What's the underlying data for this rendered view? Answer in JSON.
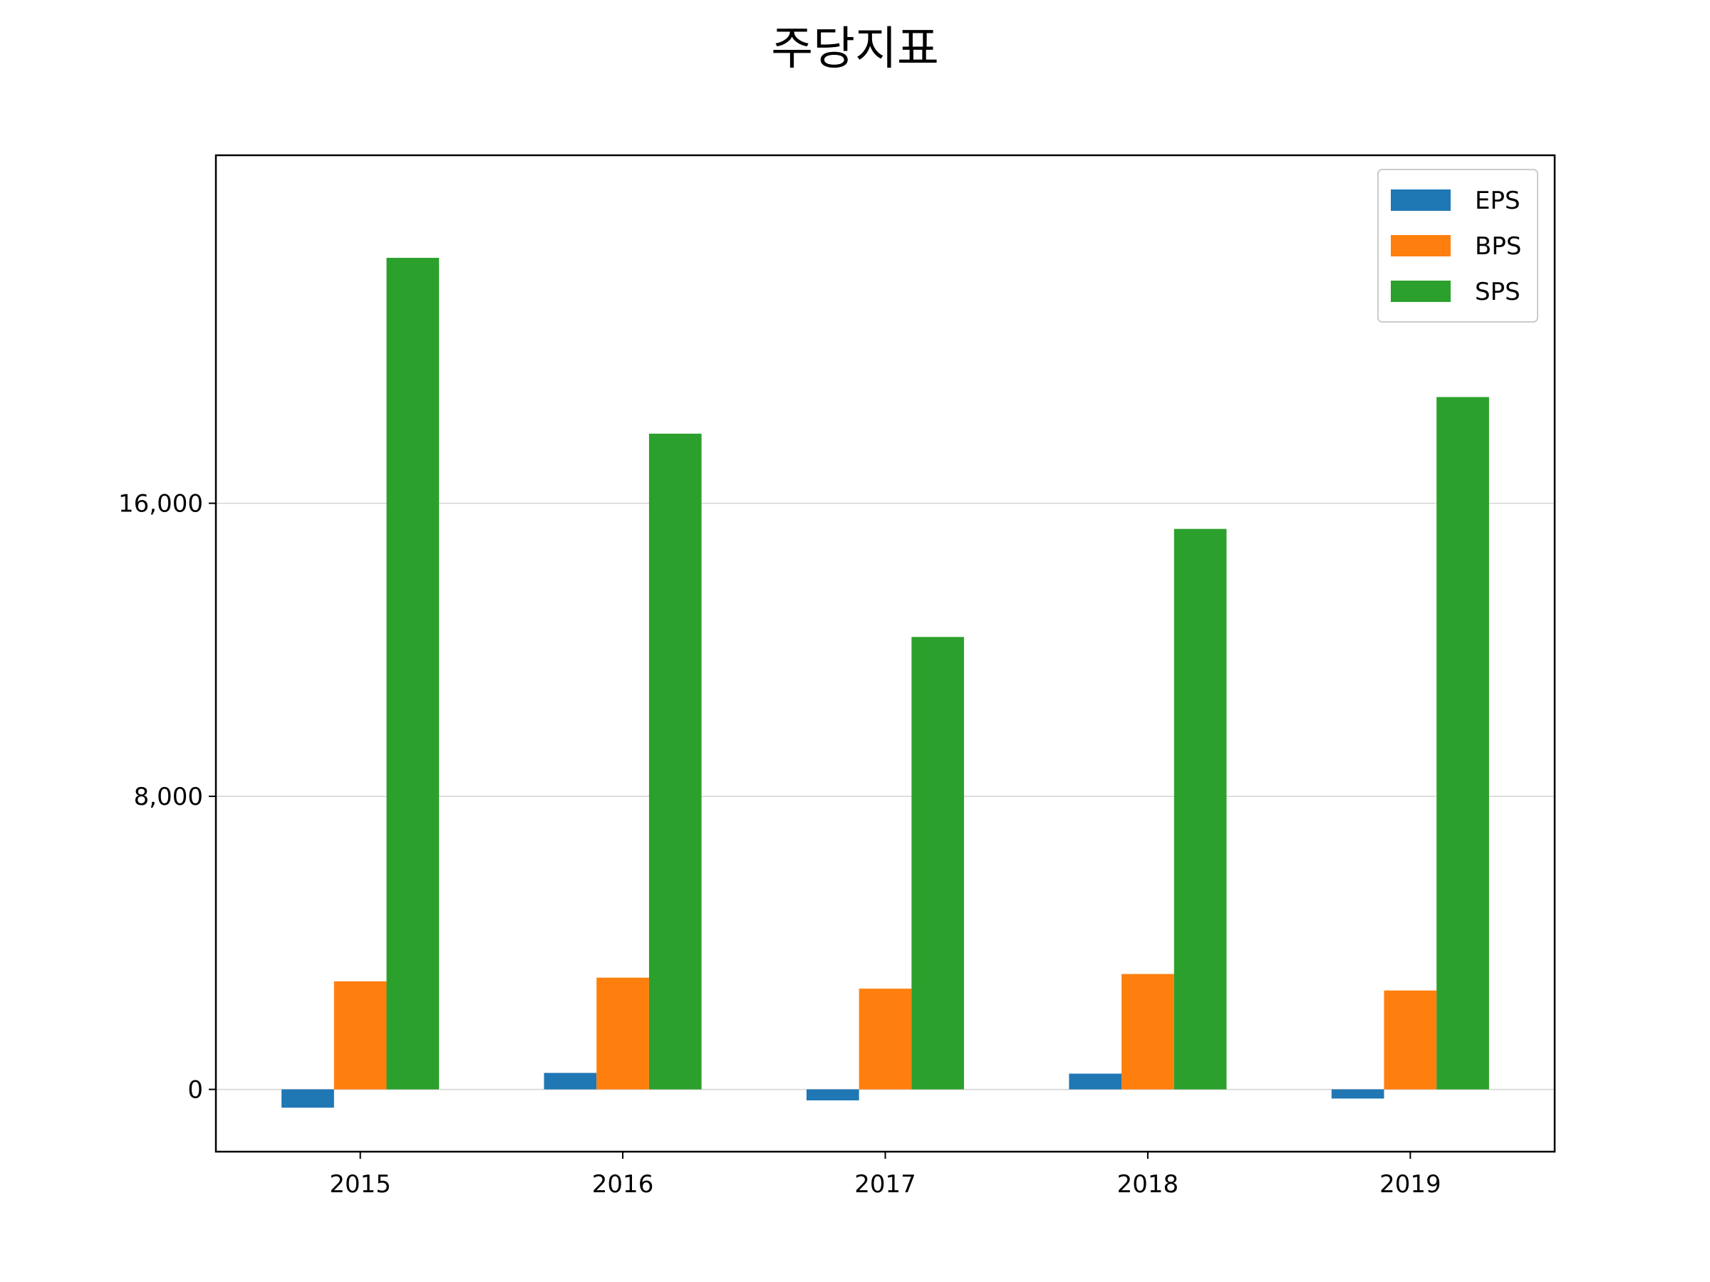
{
  "chart_data": {
    "type": "bar",
    "title": "주당지표",
    "xlabel": "",
    "ylabel": "",
    "categories": [
      "2015",
      "2016",
      "2017",
      "2018",
      "2019"
    ],
    "series": [
      {
        "name": "EPS",
        "color": "#1f77b4",
        "values": [
          -500,
          450,
          -300,
          430,
          -250
        ]
      },
      {
        "name": "BPS",
        "color": "#ff7f0e",
        "values": [
          2950,
          3050,
          2750,
          3150,
          2700
        ]
      },
      {
        "name": "SPS",
        "color": "#2ca02c",
        "values": [
          22700,
          17900,
          12350,
          15300,
          18900
        ]
      }
    ],
    "ylim": [
      -1700,
      25500
    ],
    "yticks": [
      0,
      8000,
      16000
    ],
    "ytick_labels": [
      "0",
      "8,000",
      "16,000"
    ],
    "grid": "horizontal",
    "legend_position": "top-right"
  }
}
